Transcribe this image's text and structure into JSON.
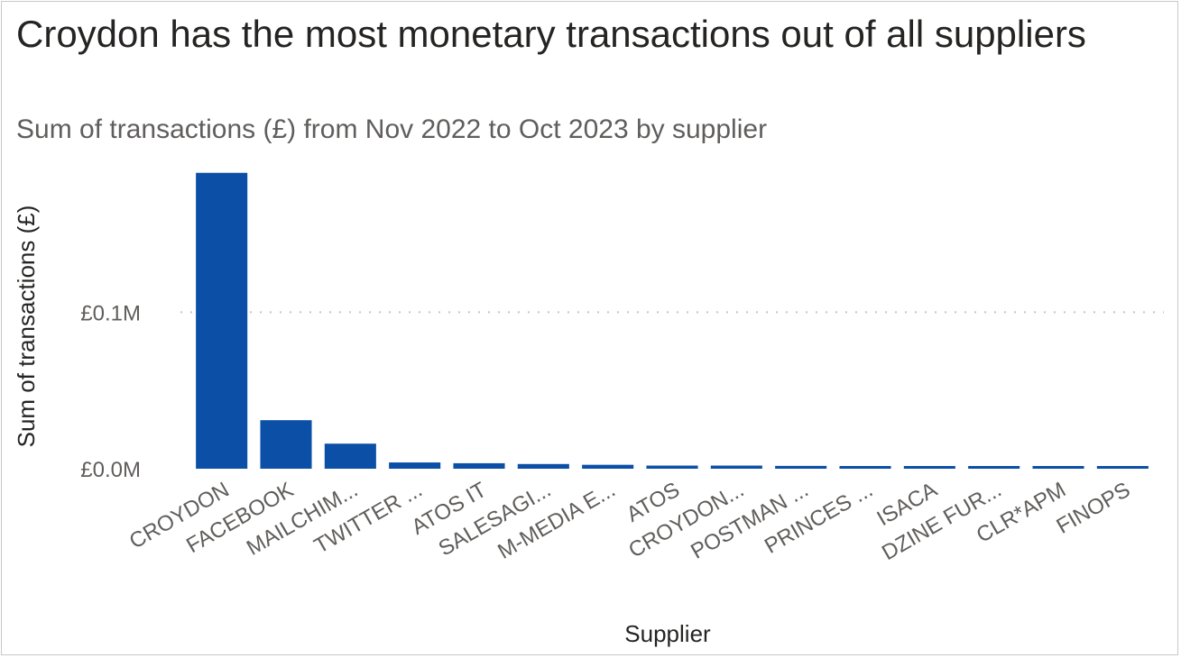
{
  "chart_data": {
    "type": "bar",
    "title": "Croydon has the most monetary transactions out of all suppliers",
    "subtitle": "Sum of transactions (£) from Nov 2022 to Oct 2023 by supplier",
    "xlabel": "Supplier",
    "ylabel": "Sum of transactions (£)",
    "categories": [
      "CROYDON",
      "FACEBOOK",
      "MAILCHIM...",
      "TWITTER ...",
      "ATOS IT",
      "SALESAGI...",
      "M-MEDIA E...",
      "ATOS",
      "CROYDON...",
      "POSTMAN ...",
      "PRINCES ...",
      "ISACA",
      "DZINE FUR...",
      "CLR*APM",
      "FINOPS"
    ],
    "values": [
      0.189,
      0.031,
      0.016,
      0.004,
      0.0035,
      0.003,
      0.0025,
      0.002,
      0.002,
      0.0018,
      0.0017,
      0.0016,
      0.0015,
      0.0014,
      0.0013
    ],
    "value_unit": "£M",
    "yticks": [
      {
        "value": 0.0,
        "label": "£0.0M"
      },
      {
        "value": 0.1,
        "label": "£0.1M"
      }
    ],
    "ylim": [
      0,
      0.19
    ],
    "grid": "horizontal dotted",
    "colors": {
      "bar": "#0b4fa6",
      "grid": "#c8c6c4"
    }
  }
}
